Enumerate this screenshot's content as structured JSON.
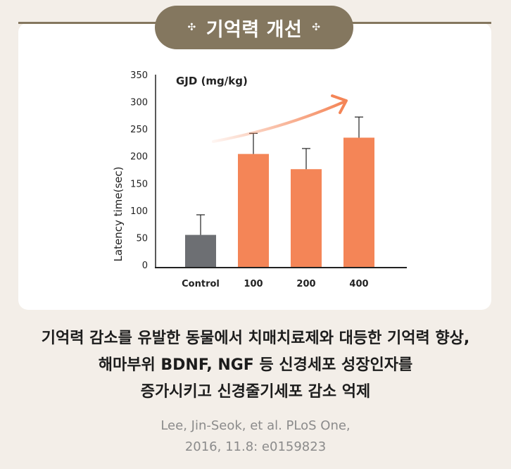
{
  "header": {
    "title": "기억력 개선",
    "spark_icon": "sparkle-icon"
  },
  "chart_data": {
    "type": "bar",
    "title": "GJD (mg/kg)",
    "ylabel": "Latency time(sec)",
    "xlabel": "",
    "categories": [
      "Control",
      "100",
      "200",
      "400"
    ],
    "values": [
      55,
      204,
      176,
      234
    ],
    "errors": [
      37,
      38,
      38,
      38
    ],
    "ylim": [
      0,
      350
    ],
    "yticks": [
      0,
      50,
      100,
      150,
      200,
      250,
      300,
      350
    ],
    "colors": [
      "#6d6f73",
      "#f48557",
      "#f48557",
      "#f48557"
    ],
    "arrow_color": "#f48557",
    "grid": false,
    "trend_arrow": true
  },
  "caption": {
    "lines": [
      "기억력 감소를 유발한 동물에서 치매치료제와 대등한 기억력 향상,",
      "해마부위 BDNF, NGF 등 신경세포 성장인자를",
      "증가시키고 신경줄기세포 감소 억제"
    ]
  },
  "citation": {
    "lines": [
      "Lee, Jin-Seok, et al. PLoS One,",
      "2016, 11.8: e0159823"
    ]
  }
}
